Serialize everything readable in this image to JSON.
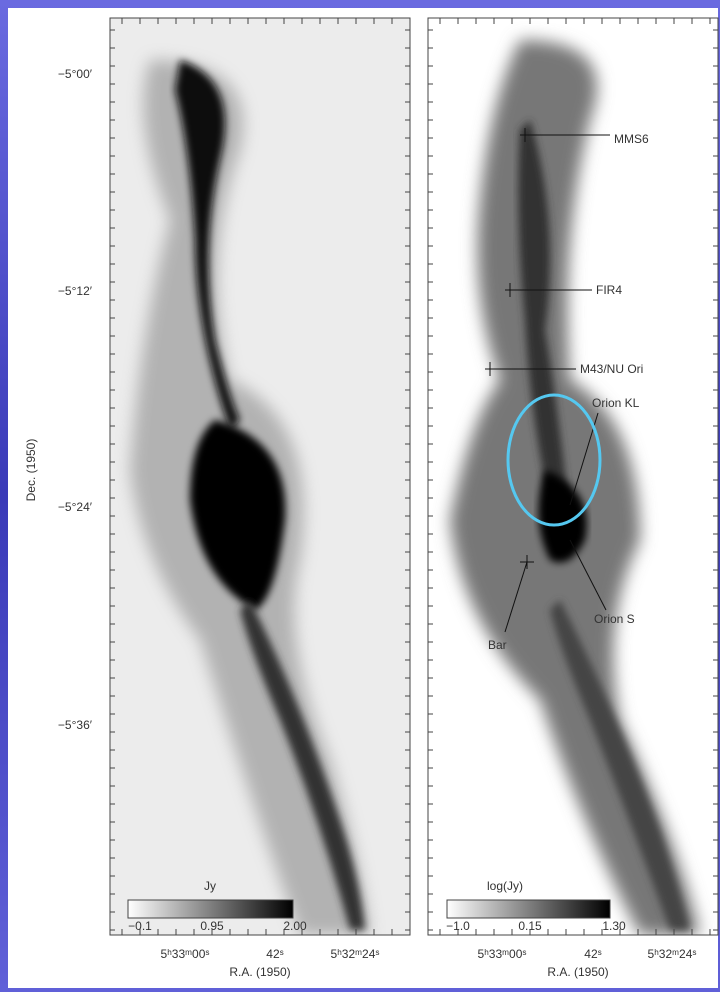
{
  "y_axis": {
    "label": "Dec. (1950)",
    "ticks": [
      "−5°00′",
      "−5°12′",
      "−5°24′",
      "−5°36′"
    ]
  },
  "panels": [
    {
      "x_ticks": [
        "5ʰ33ᵐ00ˢ",
        "42ˢ",
        "5ʰ32ᵐ24ˢ"
      ],
      "x_label": "R.A. (1950)",
      "colorbar": {
        "label": "Jy",
        "ticks": [
          "−0.1",
          "0.95",
          "2.00"
        ]
      }
    },
    {
      "x_ticks": [
        "5ʰ33ᵐ00ˢ",
        "42ˢ",
        "5ʰ32ᵐ24ˢ"
      ],
      "x_label": "R.A. (1950)",
      "colorbar": {
        "label": "log(Jy)",
        "ticks": [
          "−1.0",
          "0.15",
          "1.30"
        ]
      }
    }
  ],
  "annotations": [
    "MMS6",
    "FIR4",
    "M43/NU Ori",
    "Orion KL",
    "Orion S",
    "Bar"
  ]
}
